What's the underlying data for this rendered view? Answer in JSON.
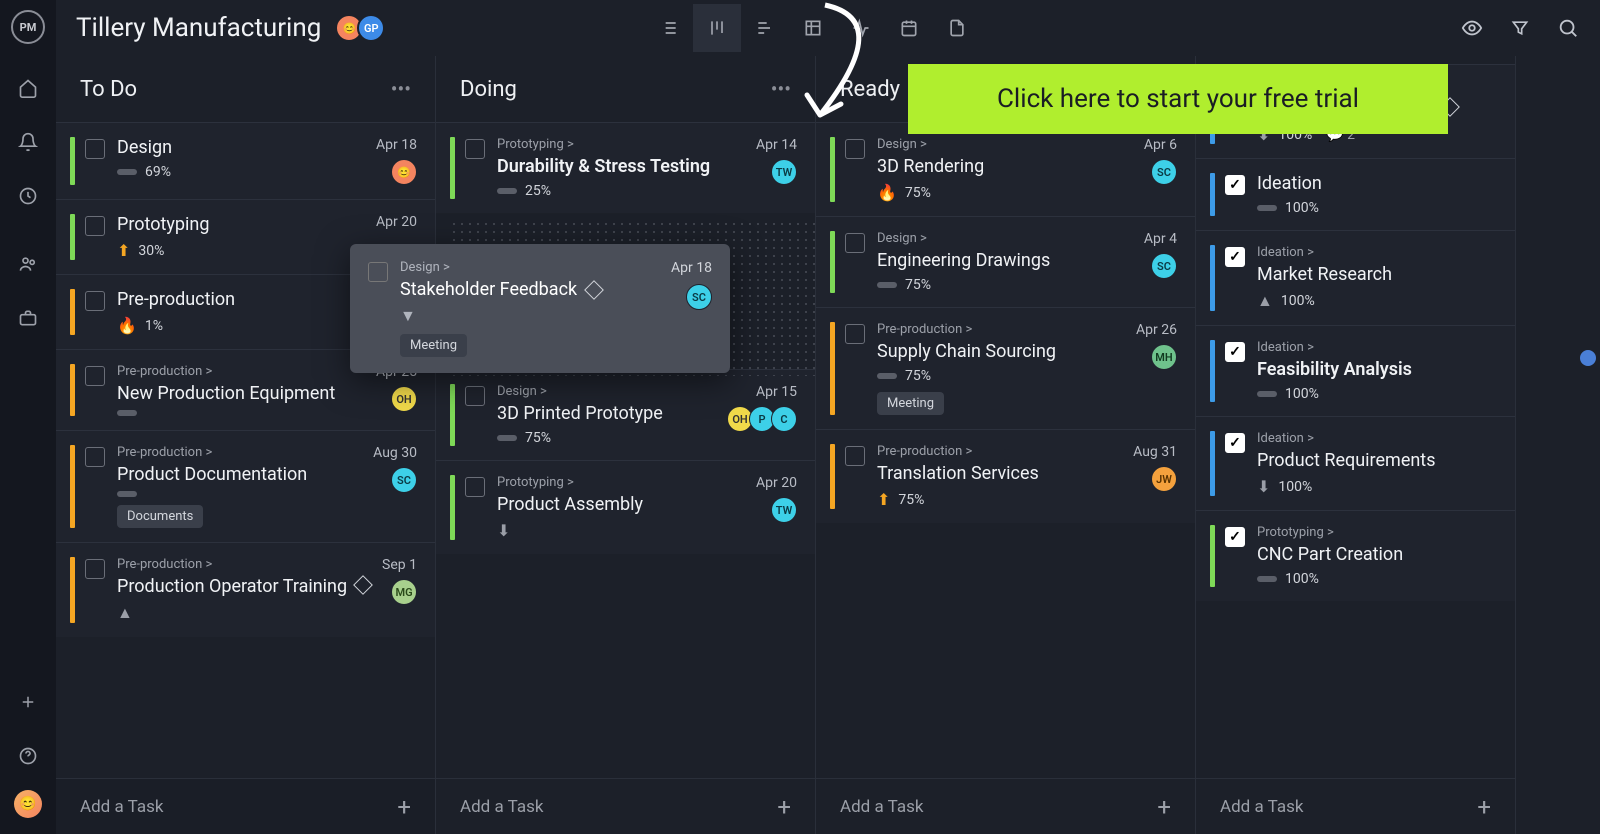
{
  "header": {
    "logo_text": "PM",
    "title": "Tillery Manufacturing",
    "avatars": [
      {
        "bg": "#f4845f"
      },
      {
        "label": "GP",
        "bg": "#3d8be8"
      }
    ]
  },
  "cta": {
    "text": "Click here to start your free trial"
  },
  "add_task_label": "Add a Task",
  "columns": [
    {
      "title": "To Do",
      "show_more": true,
      "show_add_bottom": true,
      "cards": [
        {
          "stripe": "#7ed957",
          "title": "Design",
          "pct": "69%",
          "date": "Apr 18",
          "priority": "bar",
          "assignees": [
            {
              "bg": "#f4845f"
            }
          ]
        },
        {
          "stripe": "#7ed957",
          "title": "Prototyping",
          "pct": "30%",
          "date": "Apr 20",
          "priority": "up-orange"
        },
        {
          "stripe": "#f5a623",
          "title": "Pre-production",
          "pct": "1%",
          "priority": "flame"
        },
        {
          "stripe": "#f5a623",
          "category": "Pre-production >",
          "title": "New Production Equipment",
          "date": "Apr 25",
          "priority": "bar",
          "assignees": [
            {
              "label": "OH",
              "bg": "#f0d94a",
              "fg": "#333"
            }
          ]
        },
        {
          "stripe": "#f5a623",
          "category": "Pre-production >",
          "title": "Product Documentation",
          "date": "Aug 30",
          "priority": "bar",
          "assignees": [
            {
              "label": "SC",
              "bg": "#3dd0e8",
              "fg": "#0a3a44"
            }
          ],
          "tag": "Documents"
        },
        {
          "stripe": "#f5a623",
          "category": "Pre-production >",
          "title": "Production Operator Training",
          "date": "Sep 1",
          "priority": "up-gray",
          "diamond": true,
          "assignees": [
            {
              "label": "MG",
              "bg": "#a8d08d",
              "fg": "#2a4a1a"
            }
          ]
        }
      ]
    },
    {
      "title": "Doing",
      "show_more": true,
      "show_add_inline": true,
      "cards": [
        {
          "stripe": "#7ed957",
          "category": "Prototyping >",
          "title": "Durability & Stress Testing",
          "bold": true,
          "pct": "25%",
          "priority": "bar",
          "date": "Apr 14",
          "assignees": [
            {
              "label": "TW",
              "bg": "#3dd0e8",
              "fg": "#0a3a44"
            }
          ]
        },
        {
          "spacer": true,
          "height": 156
        },
        {
          "stripe": "#7ed957",
          "category": "Design >",
          "title": "3D Printed Prototype",
          "pct": "75%",
          "priority": "bar",
          "date": "Apr 15",
          "assignees": [
            {
              "label": "OH",
              "bg": "#f0d94a",
              "fg": "#333"
            },
            {
              "label": "P",
              "bg": "#3dd0e8",
              "fg": "#0a3a44"
            },
            {
              "label": "C",
              "bg": "#3dd0e8",
              "fg": "#0a3a44"
            }
          ]
        },
        {
          "stripe": "#7ed957",
          "category": "Prototyping >",
          "title": "Product Assembly",
          "priority": "down-gray",
          "date": "Apr 20",
          "assignees": [
            {
              "label": "TW",
              "bg": "#3dd0e8",
              "fg": "#0a3a44"
            }
          ]
        }
      ]
    },
    {
      "title": "Ready",
      "show_add_inline": true,
      "cards": [
        {
          "stripe": "#7ed957",
          "category": "Design >",
          "title": "3D Rendering",
          "pct": "75%",
          "priority": "flame",
          "date": "Apr 6",
          "assignees": [
            {
              "label": "SC",
              "bg": "#3dd0e8",
              "fg": "#0a3a44"
            }
          ]
        },
        {
          "stripe": "#7ed957",
          "category": "Design >",
          "title": "Engineering Drawings",
          "pct": "75%",
          "priority": "bar",
          "date": "Apr 4",
          "assignees": [
            {
              "label": "SC",
              "bg": "#3dd0e8",
              "fg": "#0a3a44"
            }
          ]
        },
        {
          "stripe": "#f5a623",
          "category": "Pre-production >",
          "title": "Supply Chain Sourcing",
          "pct": "75%",
          "priority": "bar",
          "date": "Apr 26",
          "assignees": [
            {
              "label": "MH",
              "bg": "#6fc28c",
              "fg": "#113a20"
            }
          ],
          "tag": "Meeting"
        },
        {
          "stripe": "#f5a623",
          "category": "Pre-production >",
          "title": "Translation Services",
          "pct": "75%",
          "priority": "up-orange",
          "date": "Aug 31",
          "assignees": [
            {
              "label": "JW",
              "bg": "#f4a13d",
              "fg": "#5a3300"
            }
          ]
        }
      ]
    },
    {
      "title": "",
      "narrow": true,
      "show_add_inline": true,
      "cards": [
        {
          "stripe": "#3d9be8",
          "category": "Ideation >",
          "title": "Stakeholder Feedback",
          "checked": true,
          "diamond": true,
          "pct": "100%",
          "priority": "down-gray",
          "comments": "2"
        },
        {
          "stripe": "#3d9be8",
          "title": "Ideation",
          "checked": true,
          "pct": "100%",
          "priority": "bar"
        },
        {
          "stripe": "#3d9be8",
          "category": "Ideation >",
          "title": "Market Research",
          "checked": true,
          "pct": "100%",
          "priority": "up-gray"
        },
        {
          "stripe": "#3d9be8",
          "category": "Ideation >",
          "title": "Feasibility Analysis",
          "bold": true,
          "checked": true,
          "pct": "100%",
          "priority": "bar"
        },
        {
          "stripe": "#3d9be8",
          "category": "Ideation >",
          "title": "Product Requirements",
          "checked": true,
          "pct": "100%",
          "priority": "down-gray"
        },
        {
          "stripe": "#7ed957",
          "category": "Prototyping >",
          "title": "CNC Part Creation",
          "checked": true,
          "pct": "100%",
          "priority": "bar"
        }
      ]
    }
  ],
  "drag_card": {
    "category": "Design >",
    "title": "Stakeholder Feedback",
    "date": "Apr 18",
    "assignee": {
      "label": "SC",
      "bg": "#3dd0e8",
      "fg": "#0a3a44"
    },
    "tag": "Meeting"
  },
  "colors": {
    "bg": "#1c2029",
    "sidebar": "#14171f",
    "card": "#1f232d",
    "cta_bg": "#b0ee2e"
  }
}
